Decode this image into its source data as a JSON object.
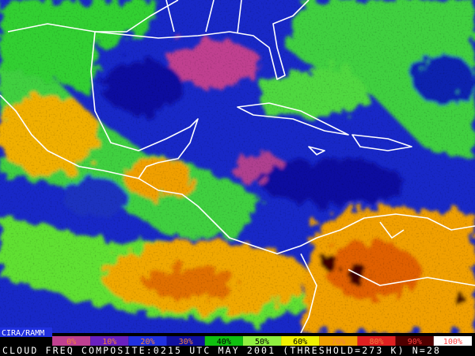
{
  "overlay": {
    "credit": "CIRA/RAMM"
  },
  "legend": {
    "labels": [
      "0%",
      "10%",
      "20%",
      "30%",
      "40%",
      "50%",
      "60%",
      "70%",
      "80%",
      "90%",
      "100%"
    ],
    "colors": [
      "#c04090",
      "#6a20c0",
      "#2030e0",
      "#1010a0",
      "#10c010",
      "#90f040",
      "#f0f000",
      "#f0a000",
      "#e02020",
      "#500000",
      "#ffffff"
    ]
  },
  "caption": "CLOUD FREQ COMPOSITE:0215 UTC MAY 2001 (THRESHOLD=273 K) N=28"
}
